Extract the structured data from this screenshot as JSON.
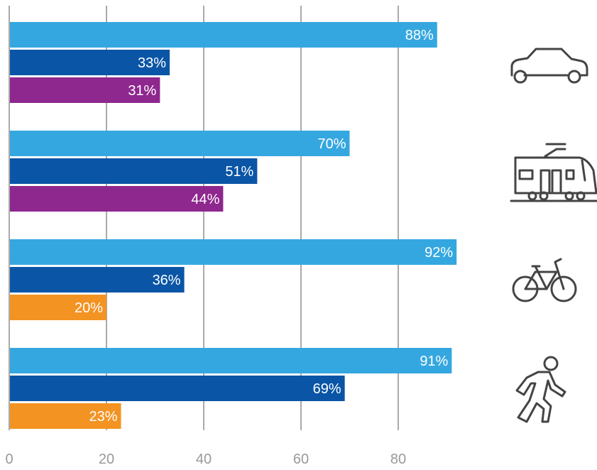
{
  "chart_data": {
    "type": "bar",
    "orientation": "horizontal",
    "title": "",
    "xlabel": "",
    "ylabel": "",
    "xlim": [
      0,
      90
    ],
    "xticks": [
      "0",
      "20",
      "40",
      "60",
      "80"
    ],
    "grid": true,
    "value_suffix": "%",
    "groups": [
      {
        "icon": "car-icon",
        "bars": [
          {
            "value": 88,
            "label": "88%",
            "color": "#35a7e0"
          },
          {
            "value": 33,
            "label": "33%",
            "color": "#0a55a6"
          },
          {
            "value": 31,
            "label": "31%",
            "color": "#8e278e"
          }
        ]
      },
      {
        "icon": "tram-icon",
        "bars": [
          {
            "value": 70,
            "label": "70%",
            "color": "#35a7e0"
          },
          {
            "value": 51,
            "label": "51%",
            "color": "#0a55a6"
          },
          {
            "value": 44,
            "label": "44%",
            "color": "#8e278e"
          }
        ]
      },
      {
        "icon": "bicycle-icon",
        "bars": [
          {
            "value": 92,
            "label": "92%",
            "color": "#35a7e0"
          },
          {
            "value": 36,
            "label": "36%",
            "color": "#0a55a6"
          },
          {
            "value": 20,
            "label": "20%",
            "color": "#f39322"
          }
        ]
      },
      {
        "icon": "pedestrian-icon",
        "bars": [
          {
            "value": 91,
            "label": "91%",
            "color": "#35a7e0"
          },
          {
            "value": 69,
            "label": "69%",
            "color": "#0a55a6"
          },
          {
            "value": 23,
            "label": "23%",
            "color": "#f39322"
          }
        ]
      }
    ]
  }
}
